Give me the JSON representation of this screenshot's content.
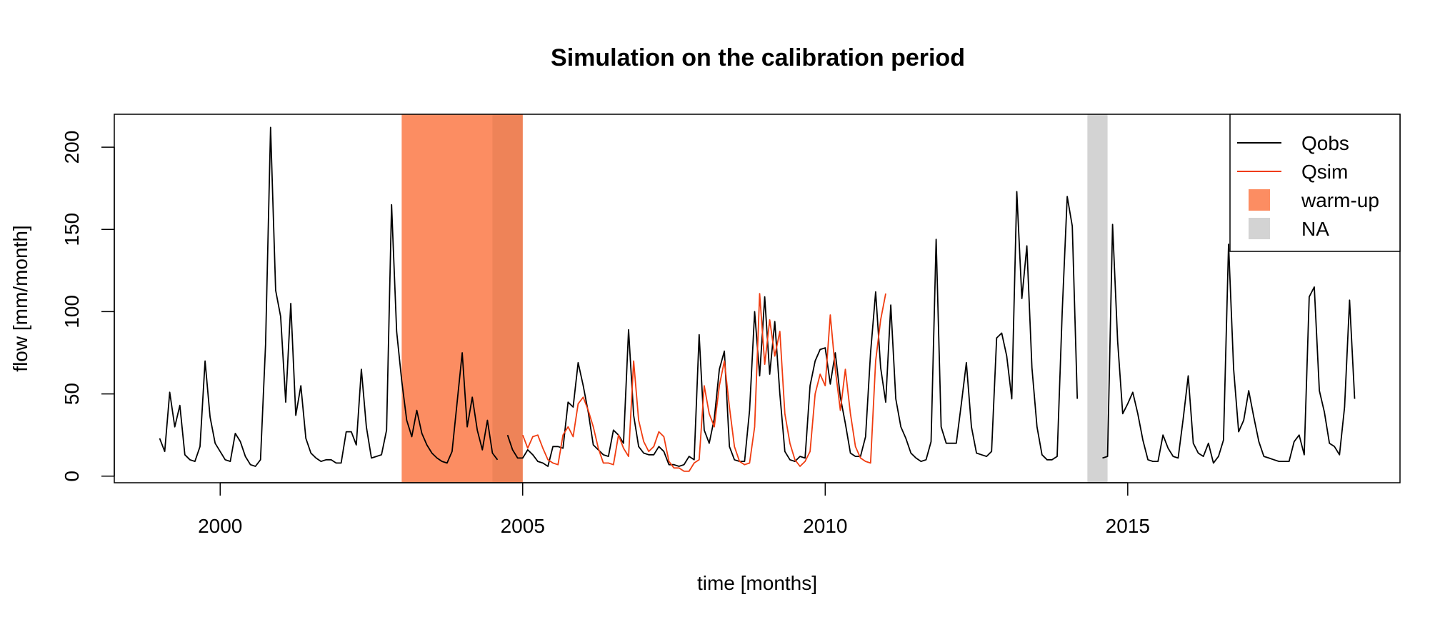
{
  "chart_data": {
    "type": "line",
    "title": "Simulation on the calibration period",
    "xlabel": "time [months]",
    "ylabel": "flow [mm/month]",
    "xlim": [
      "1998-04",
      "2019-07"
    ],
    "ylim": [
      -4,
      220
    ],
    "x_ticks": [
      {
        "label": "2000",
        "at": "2000-01"
      },
      {
        "label": "2005",
        "at": "2005-01"
      },
      {
        "label": "2010",
        "at": "2010-01"
      },
      {
        "label": "2015",
        "at": "2015-01"
      }
    ],
    "y_ticks": [
      0,
      50,
      100,
      150,
      200
    ],
    "grid": false,
    "legend_position": "top-right",
    "legend": [
      {
        "label": "Qobs",
        "kind": "line",
        "color": "#000000"
      },
      {
        "label": "Qsim",
        "kind": "line",
        "color": "#f03c10"
      },
      {
        "label": "warm-up",
        "kind": "box",
        "color": "#fc8d62"
      },
      {
        "label": "NA",
        "kind": "box",
        "color": "#d3d3d3"
      }
    ],
    "regions": [
      {
        "name": "warm-up",
        "from": "2003-01",
        "to": "2005-01",
        "color": "#fc8d62"
      },
      {
        "name": "warm-up-overlap",
        "from": "2004-07",
        "to": "2005-01",
        "color": "#ee8358"
      },
      {
        "name": "NA",
        "from": "2014-05",
        "to": "2014-09",
        "color": "#d3d3d3"
      }
    ],
    "series": [
      {
        "name": "Qobs",
        "color": "#000000",
        "start": "1999-01",
        "values": [
          23,
          15,
          51,
          30,
          43,
          13,
          10,
          9,
          18,
          70,
          36,
          20,
          15,
          10,
          9,
          26,
          21,
          12,
          7,
          6,
          10,
          80,
          212,
          113,
          97,
          45,
          105,
          37,
          55,
          23,
          14,
          11,
          9,
          10,
          10,
          8,
          8,
          27,
          27,
          19,
          65,
          30,
          11,
          12,
          13,
          28,
          165,
          88,
          58,
          34,
          24,
          40,
          26,
          19,
          14,
          11,
          9,
          8,
          15,
          45,
          75,
          30,
          48,
          28,
          16,
          34,
          14,
          10,
          null,
          25,
          16,
          11,
          11,
          16,
          13,
          9,
          8,
          6,
          18,
          18,
          17,
          45,
          42,
          69,
          55,
          39,
          19,
          16,
          13,
          12,
          28,
          25,
          20,
          89,
          37,
          18,
          14,
          13,
          13,
          18,
          15,
          7,
          7,
          6,
          7,
          12,
          10,
          86,
          28,
          20,
          35,
          65,
          76,
          18,
          10,
          9,
          9,
          40,
          100,
          61,
          109,
          62,
          94,
          50,
          15,
          10,
          9,
          12,
          11,
          55,
          70,
          77,
          78,
          56,
          75,
          48,
          32,
          14,
          12,
          12,
          24,
          75,
          112,
          66,
          45,
          104,
          47,
          30,
          23,
          14,
          11,
          9,
          10,
          21,
          144,
          30,
          20,
          20,
          20,
          44,
          69,
          30,
          14,
          13,
          12,
          15,
          84,
          87,
          73,
          47,
          173,
          108,
          140,
          66,
          30,
          13,
          10,
          10,
          12,
          100,
          170,
          152,
          47,
          null,
          null,
          null,
          null,
          11,
          12,
          153,
          82,
          38,
          44,
          51,
          38,
          22,
          10,
          9,
          9,
          25,
          17,
          12,
          11,
          35,
          61,
          20,
          14,
          12,
          20,
          8,
          12,
          22,
          141,
          65,
          27,
          34,
          52,
          36,
          21,
          12,
          11,
          10,
          9,
          9,
          9,
          21,
          25,
          13,
          109,
          115,
          52,
          39,
          20,
          18,
          13,
          42,
          107,
          47
        ]
      },
      {
        "name": "Qsim",
        "color": "#f03c10",
        "start": "2005-01",
        "values": [
          25,
          17,
          24,
          25,
          17,
          10,
          8,
          7,
          25,
          30,
          24,
          44,
          48,
          40,
          30,
          17,
          8,
          8,
          7,
          25,
          17,
          12,
          70,
          34,
          21,
          15,
          18,
          27,
          24,
          9,
          5,
          5,
          3,
          3,
          8,
          10,
          55,
          38,
          30,
          55,
          70,
          42,
          18,
          9,
          7,
          8,
          30,
          111,
          68,
          95,
          73,
          88,
          38,
          20,
          10,
          6,
          9,
          15,
          50,
          62,
          55,
          98,
          65,
          40,
          65,
          38,
          18,
          11,
          9,
          8,
          70,
          95,
          111
        ]
      }
    ]
  }
}
